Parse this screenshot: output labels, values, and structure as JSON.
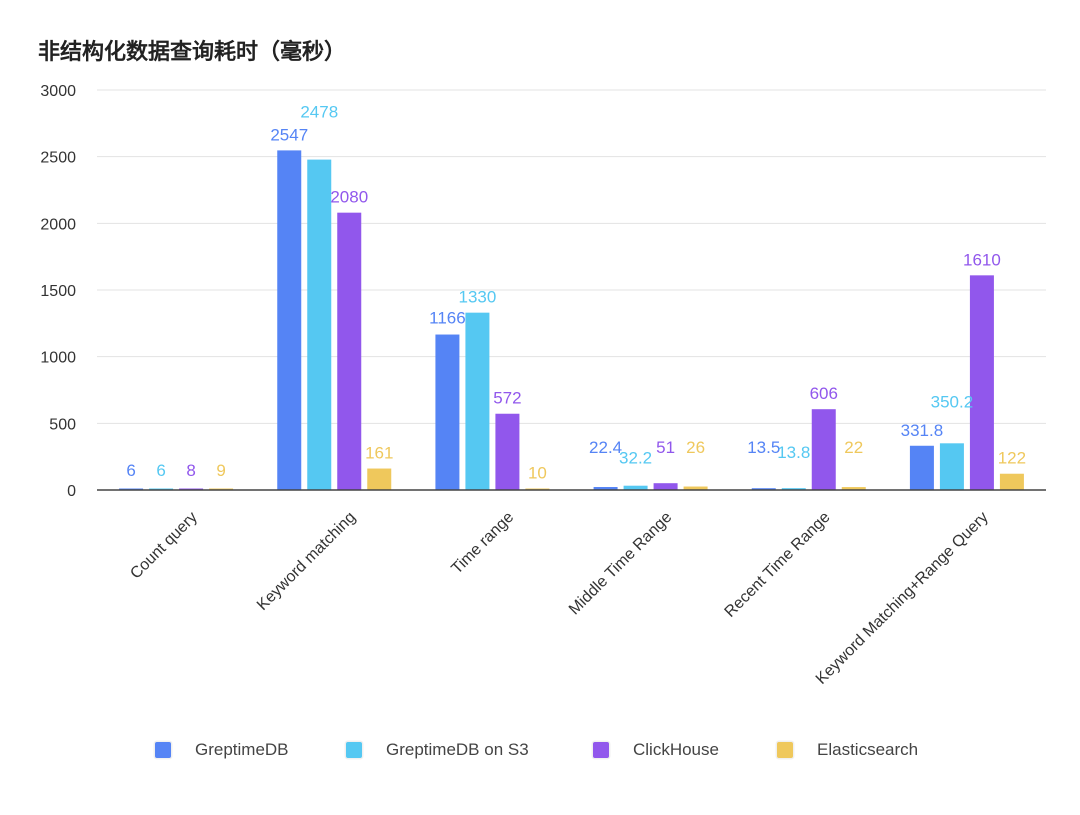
{
  "chart_data": {
    "type": "bar",
    "title": "非结构化数据查询耗时（毫秒）",
    "xlabel": "",
    "ylabel": "",
    "ylim": [
      0,
      3000
    ],
    "yticks": [
      "0",
      "500",
      "1000",
      "1500",
      "2000",
      "2500",
      "3000"
    ],
    "grid": true,
    "legend_position": "bottom",
    "categories": [
      "Count query",
      "Keyword matching",
      "Time range",
      "Middle Time Range",
      "Recent Time Range",
      "Keyword Matching+Range Query"
    ],
    "series": [
      {
        "name": "GreptimeDB",
        "color": "#5584f5",
        "values": [
          6,
          2547,
          1166,
          22.4,
          13.5,
          331.8
        ],
        "labels": [
          "6",
          "2547",
          "1166",
          "22.4",
          "13.5",
          "331.8"
        ]
      },
      {
        "name": "GreptimeDB on S3",
        "color": "#55c8f2",
        "values": [
          6,
          2478,
          1330,
          32.2,
          13.8,
          350.2
        ],
        "labels": [
          "6",
          "2478",
          "1330",
          "32.2",
          "13.8",
          "350.2"
        ]
      },
      {
        "name": "ClickHouse",
        "color": "#9157ec",
        "values": [
          8,
          2080,
          572,
          51,
          606,
          1610
        ],
        "labels": [
          "8",
          "2080",
          "572",
          "51",
          "606",
          "1610"
        ]
      },
      {
        "name": "Elasticsearch",
        "color": "#efc85c",
        "values": [
          9,
          161,
          10,
          26,
          22,
          122
        ],
        "labels": [
          "9",
          "161",
          "10",
          "26",
          "22",
          "122"
        ]
      }
    ]
  }
}
